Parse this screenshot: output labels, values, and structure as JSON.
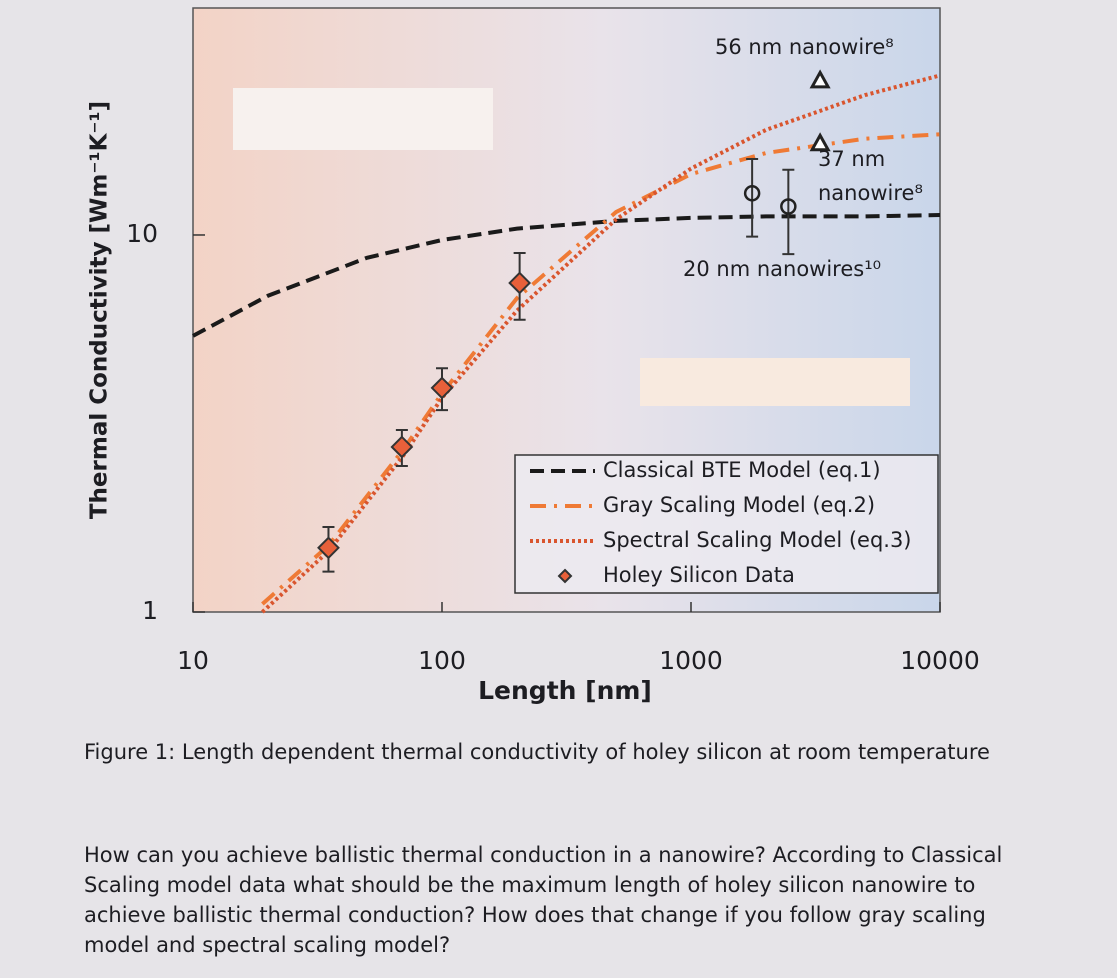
{
  "chart_data": {
    "type": "scatter",
    "xlabel": "Length [nm]",
    "ylabel": "Thermal Conductivity [Wm⁻¹K⁻¹]",
    "xscale": "log",
    "yscale": "log",
    "xlim": [
      10,
      10000
    ],
    "ylim": [
      1,
      40
    ],
    "xticks": [
      10,
      100,
      1000,
      10000
    ],
    "yticks": [
      1,
      10
    ],
    "legend": "lower right",
    "series": [
      {
        "name": "Classical BTE Model (eq.1)",
        "style": "dashed",
        "color": "#1a1a1a",
        "x": [
          10,
          20,
          50,
          100,
          200,
          500,
          1000,
          2000,
          5000,
          10000
        ],
        "values": [
          5.4,
          6.9,
          8.7,
          9.7,
          10.4,
          10.9,
          11.1,
          11.2,
          11.2,
          11.3
        ]
      },
      {
        "name": "Gray Scaling Model (eq.2)",
        "style": "dash-dot",
        "color": "#ef7a35",
        "x": [
          19,
          35,
          70,
          100,
          200,
          500,
          1000,
          2000,
          5000,
          10000
        ],
        "values": [
          1.05,
          1.5,
          2.7,
          3.8,
          6.8,
          11.5,
          14.5,
          16.5,
          18,
          18.5
        ]
      },
      {
        "name": "Spectral Scaling Model (eq.3)",
        "style": "dotted",
        "color": "#d9552e",
        "x": [
          19,
          35,
          70,
          100,
          200,
          500,
          1000,
          2000,
          5000,
          10000
        ],
        "values": [
          1.0,
          1.45,
          2.6,
          3.7,
          6.3,
          11,
          15,
          19,
          23.5,
          26.5
        ]
      },
      {
        "name": "Holey Silicon Data",
        "style": "markers",
        "marker": "diamond",
        "color": "#e8603a",
        "x": [
          35,
          69,
          100,
          205
        ],
        "values": [
          1.48,
          2.74,
          3.93,
          7.46
        ],
        "errors": [
          0.2,
          0.3,
          0.5,
          1.5
        ]
      }
    ],
    "nanowire_data": [
      {
        "label": [
          "56 nm nanowire⁸"
        ],
        "marker": "triangle",
        "x": [
          3300
        ],
        "values": [
          25.7
        ]
      },
      {
        "label": [
          "37 nm",
          "nanowire⁸"
        ],
        "marker": "triangle",
        "x": [
          3300
        ],
        "values": [
          17.5
        ]
      },
      {
        "label": [
          "20 nm nanowires¹⁰"
        ],
        "marker": "circle",
        "x": [
          1760,
          2460
        ],
        "values": [
          12.9,
          11.9
        ],
        "errors": [
          3,
          3
        ]
      }
    ]
  },
  "caption": "Figure 1: Length dependent thermal conductivity of holey silicon at room temperature",
  "question": "How can you achieve ballistic thermal conduction in a nanowire? According to Classical Scaling model data what should be the maximum length of holey silicon nanowire to achieve ballistic thermal conduction? How does that change if you follow gray scaling model and spectral scaling model?"
}
